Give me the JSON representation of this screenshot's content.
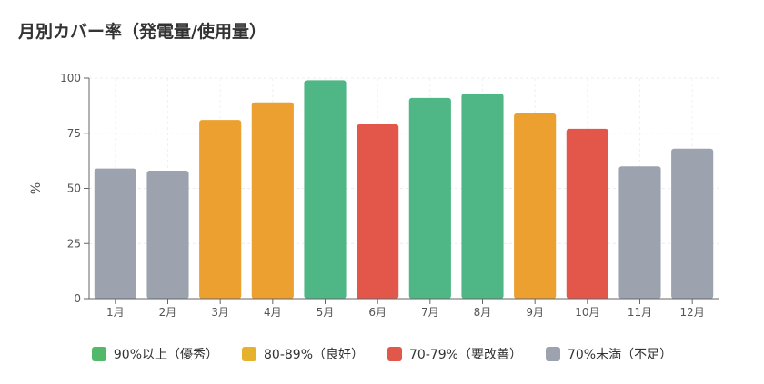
{
  "chart_data": {
    "type": "bar",
    "title": "月別カバー率（発電量/使用量）",
    "ylabel": "%",
    "xlabel": "",
    "ylim": [
      0,
      100
    ],
    "yticks": [
      0,
      25,
      50,
      75,
      100
    ],
    "grid": true,
    "legend_position": "bottom",
    "categories": [
      "1月",
      "2月",
      "3月",
      "4月",
      "5月",
      "6月",
      "7月",
      "8月",
      "9月",
      "10月",
      "11月",
      "12月"
    ],
    "values": [
      59,
      58,
      81,
      89,
      99,
      79,
      91,
      93,
      84,
      77,
      60,
      68
    ],
    "bar_classes": [
      "lt70",
      "lt70",
      "c8089",
      "c8089",
      "ge90",
      "c7079",
      "ge90",
      "ge90",
      "c8089",
      "c7079",
      "lt70",
      "lt70"
    ],
    "legend": [
      {
        "key": "ge90",
        "label": "90%以上（優秀）",
        "color": "#52b86a",
        "bar_color": "#4fb785"
      },
      {
        "key": "c8089",
        "label": "80-89%（良好）",
        "color": "#e6b12c",
        "bar_color": "#eba030"
      },
      {
        "key": "c7079",
        "label": "70-79%（要改善）",
        "color": "#e0584a",
        "bar_color": "#e2574a"
      },
      {
        "key": "lt70",
        "label": "70%未満（不足）",
        "color": "#9ca3af",
        "bar_color": "#9ca3af"
      }
    ]
  }
}
